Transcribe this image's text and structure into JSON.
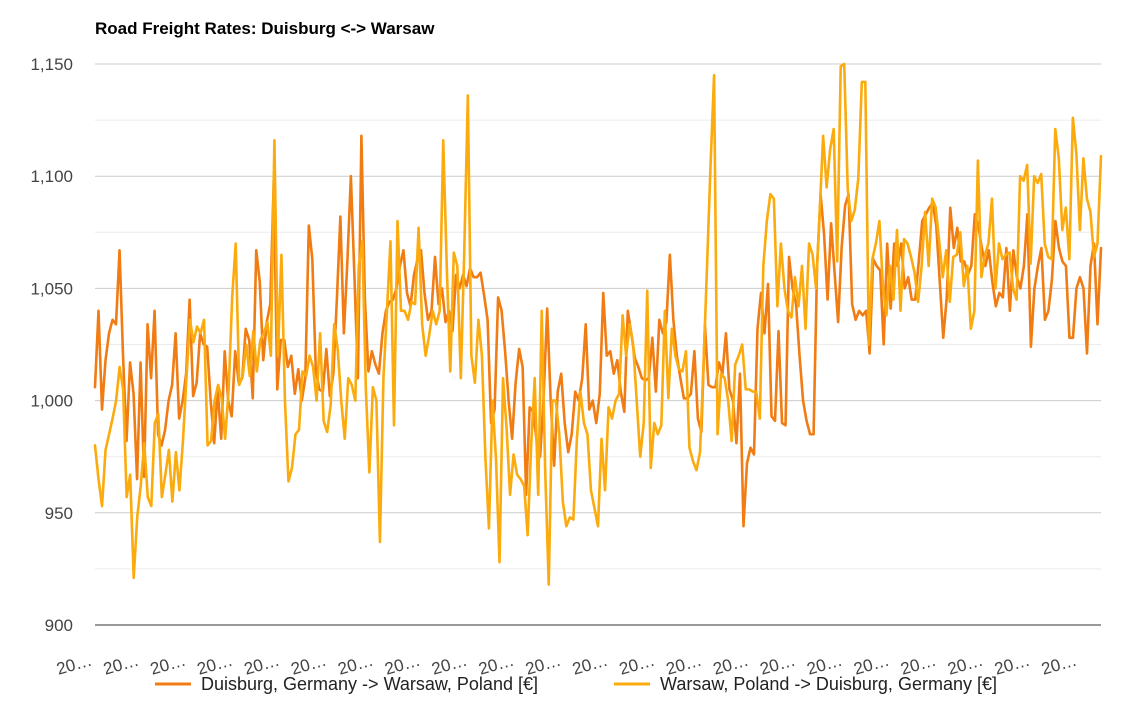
{
  "chart_data": {
    "type": "line",
    "title": "Road Freight Rates: Duisburg <-> Warsaw",
    "ylim": [
      900,
      1150
    ],
    "yticks": [
      "1,150",
      "1,100",
      "1,050",
      "1,000",
      "950",
      "900"
    ],
    "ytick_values": [
      1150,
      1100,
      1050,
      1000,
      950,
      900
    ],
    "xtick_labels": [
      "20…",
      "20…",
      "20…",
      "20…",
      "20…",
      "20…",
      "20…",
      "20…",
      "20…",
      "20…",
      "20…",
      "20…",
      "20…",
      "20…",
      "20…",
      "20…",
      "20…",
      "20…",
      "20…",
      "20…",
      "20…",
      "20…"
    ],
    "grid": true,
    "legend_position": "bottom",
    "series": [
      {
        "name": "Duisburg, Germany -> Warsaw, Poland [€]",
        "color": "#f07c13",
        "values": [
          1006,
          1040,
          996,
          1018,
          1030,
          1036,
          1034,
          1067,
          1020,
          982,
          1017,
          1003,
          965,
          1017,
          966,
          1034,
          1010,
          1040,
          985,
          980,
          987,
          1000,
          1007,
          1030,
          992,
          1000,
          1012,
          1045,
          1002,
          1008,
          1030,
          1025,
          1024,
          1000,
          981,
          1005,
          983,
          1022,
          1000,
          993,
          1022,
          1008,
          1010,
          1032,
          1027,
          1001,
          1067,
          1053,
          1018,
          1035,
          1043,
          1098,
          1005,
          1027,
          1027,
          1015,
          1020,
          1003,
          1014,
          1000,
          1010,
          1078,
          1063,
          1013,
          1005,
          1004,
          1023,
          1002,
          1012,
          1045,
          1082,
          1030,
          1062,
          1100,
          1056,
          1010,
          1118,
          1045,
          1013,
          1022,
          1016,
          1012,
          1030,
          1040,
          1044,
          1045,
          1050,
          1060,
          1067,
          1048,
          1042,
          1056,
          1063,
          1067,
          1048,
          1036,
          1040,
          1064,
          1043,
          1050,
          1035,
          1040,
          1031,
          1056,
          1050,
          1056,
          1051,
          1059,
          1055,
          1055,
          1057,
          1047,
          1036,
          990,
          996,
          1046,
          1040,
          1022,
          1000,
          983,
          1008,
          1023,
          1015,
          958,
          997,
          995,
          982,
          975,
          1002,
          1041,
          1000,
          971,
          1004,
          1012,
          990,
          977,
          985,
          1004,
          1000,
          1010,
          1034,
          996,
          1000,
          990,
          1003,
          1048,
          1020,
          1022,
          1012,
          1018,
          1004,
          995,
          1040,
          1030,
          1019,
          1015,
          1010,
          1009,
          1010,
          1028,
          1004,
          1036,
          1030,
          1035,
          1065,
          1036,
          1020,
          1010,
          1001,
          1001,
          1003,
          1022,
          992,
          986,
          1034,
          1007,
          1006,
          1006,
          1017,
          1012,
          1030,
          1005,
          1000,
          981,
          1012,
          944,
          972,
          979,
          976,
          1032,
          1048,
          1030,
          1052,
          993,
          991,
          1031,
          990,
          989,
          1064,
          1050,
          1043,
          1020,
          1000,
          991,
          985,
          985,
          1060,
          1092,
          1074,
          1045,
          1079,
          1057,
          1035,
          1068,
          1087,
          1092,
          1043,
          1036,
          1040,
          1038,
          1040,
          1021,
          1063,
          1060,
          1058,
          1025,
          1070,
          1041,
          1070,
          1060,
          1070,
          1050,
          1055,
          1045,
          1045,
          1062,
          1080,
          1083,
          1086,
          1088,
          1078,
          1053,
          1028,
          1046,
          1086,
          1068,
          1077,
          1062,
          1062,
          1056,
          1060,
          1083,
          1078,
          1068,
          1060,
          1067,
          1053,
          1042,
          1048,
          1046,
          1068,
          1040,
          1067,
          1055,
          1050,
          1060,
          1083,
          1024,
          1050,
          1060,
          1068,
          1036,
          1040,
          1054,
          1080,
          1068,
          1062,
          1060,
          1028,
          1028,
          1050,
          1055,
          1050,
          1021,
          1060,
          1070,
          1034,
          1068
        ]
      },
      {
        "name": "Warsaw, Poland -> Duisburg, Germany [€]",
        "color": "#fbab0d",
        "values": [
          980,
          965,
          953,
          978,
          985,
          992,
          1000,
          1015,
          1005,
          957,
          967,
          921,
          948,
          962,
          981,
          957,
          953,
          990,
          994,
          957,
          967,
          978,
          955,
          977,
          960,
          982,
          1010,
          1036,
          1026,
          1033,
          1030,
          1036,
          980,
          982,
          1000,
          1007,
          1001,
          983,
          1005,
          1046,
          1070,
          1007,
          1011,
          1025,
          1011,
          1031,
          1013,
          1027,
          1030,
          1035,
          1020,
          1116,
          1020,
          1065,
          1000,
          964,
          970,
          985,
          987,
          1013,
          1011,
          1020,
          1015,
          1000,
          1030,
          991,
          986,
          998,
          1034,
          1023,
          1000,
          983,
          1010,
          1007,
          1000,
          1060,
          1071,
          1005,
          968,
          1006,
          1000,
          937,
          1010,
          1040,
          1071,
          989,
          1080,
          1040,
          1040,
          1036,
          1044,
          1043,
          1077,
          1034,
          1020,
          1029,
          1040,
          1034,
          1040,
          1116,
          1060,
          1013,
          1066,
          1060,
          1010,
          1068,
          1136,
          1020,
          1008,
          1036,
          1020,
          974,
          943,
          1000,
          974,
          928,
          1010,
          988,
          958,
          976,
          967,
          965,
          962,
          940,
          980,
          1010,
          958,
          1040,
          968,
          918,
          1000,
          1000,
          985,
          955,
          944,
          948,
          947,
          983,
          1004,
          990,
          985,
          960,
          952,
          944,
          983,
          960,
          997,
          992,
          1000,
          1003,
          1038,
          1020,
          1034,
          1025,
          1000,
          975,
          990,
          1049,
          970,
          990,
          985,
          989,
          1040,
          1001,
          1032,
          1020,
          1014,
          1013,
          1022,
          979,
          973,
          969,
          977,
          1016,
          1060,
          1105,
          1145,
          985,
          1012,
          1010,
          1000,
          982,
          1016,
          1020,
          1025,
          1005,
          1005,
          1004,
          1004,
          992,
          1060,
          1080,
          1092,
          1090,
          1042,
          1070,
          1050,
          1040,
          1037,
          1055,
          1042,
          1060,
          1032,
          1070,
          1065,
          1050,
          1083,
          1118,
          1095,
          1112,
          1121,
          1062,
          1149,
          1150,
          1094,
          1080,
          1085,
          1099,
          1142,
          1142,
          1025,
          1063,
          1070,
          1080,
          1051,
          1038,
          1060,
          1045,
          1076,
          1040,
          1072,
          1070,
          1064,
          1057,
          1044,
          1060,
          1084,
          1060,
          1090,
          1086,
          1071,
          1055,
          1067,
          1044,
          1064,
          1065,
          1075,
          1051,
          1060,
          1032,
          1040,
          1107,
          1055,
          1065,
          1070,
          1090,
          1050,
          1070,
          1063,
          1065,
          1066,
          1050,
          1045,
          1100,
          1098,
          1105,
          1061,
          1100,
          1097,
          1101,
          1070,
          1064,
          1063,
          1121,
          1108,
          1076,
          1086,
          1063,
          1126,
          1110,
          1076,
          1108,
          1090,
          1084,
          1064,
          1070,
          1109
        ]
      }
    ]
  }
}
